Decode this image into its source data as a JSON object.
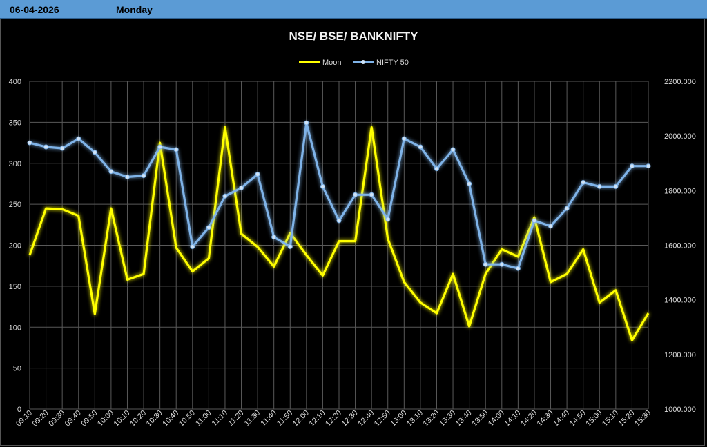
{
  "header": {
    "date": "06-04-2026",
    "day": "Monday"
  },
  "colors": {
    "moon": "#ffff00",
    "nifty": "#7fb3e8",
    "header_bg": "#5b9bd5",
    "grid": "#595959"
  },
  "chart_data": {
    "type": "line",
    "title": "NSE/ BSE/ BANKNIFTY",
    "legend_position": "top-center",
    "grid": true,
    "categories": [
      "09:10",
      "09:20",
      "09:30",
      "09:40",
      "09:50",
      "10:00",
      "10:10",
      "10:20",
      "10:30",
      "10:40",
      "10:50",
      "11:00",
      "11:10",
      "11:20",
      "11:30",
      "11:40",
      "11:50",
      "12:00",
      "12:10",
      "12:20",
      "12:30",
      "12:40",
      "12:50",
      "13:00",
      "13:10",
      "13:20",
      "13:30",
      "13:40",
      "13:50",
      "14:00",
      "14:10",
      "14:20",
      "14:30",
      "14:40",
      "14:50",
      "15:00",
      "15:10",
      "15:20",
      "15:30"
    ],
    "y_left": {
      "min": 0,
      "max": 400,
      "step": 50,
      "tick_labels": [
        "0",
        "50",
        "100",
        "150",
        "200",
        "250",
        "300",
        "350",
        "400"
      ]
    },
    "y_right": {
      "min": 1000,
      "max": 2200,
      "step": 200,
      "tick_labels": [
        "1000.000",
        "1200.000",
        "1400.000",
        "1600.000",
        "1800.000",
        "2000.000",
        "2200.000"
      ]
    },
    "series": [
      {
        "name": "Moon",
        "axis": "left",
        "markers": false,
        "values": [
          188,
          245,
          244,
          236,
          116,
          245,
          158,
          165,
          325,
          197,
          168,
          184,
          344,
          214,
          198,
          174,
          215,
          188,
          163,
          205,
          205,
          344,
          208,
          155,
          130,
          117,
          165,
          101,
          165,
          195,
          186,
          234,
          155,
          165,
          195,
          130,
          145,
          84,
          117
        ]
      },
      {
        "name": "NIFTY 50",
        "axis": "right",
        "markers": true,
        "values": [
          1975,
          1960,
          1955,
          1990,
          1940,
          1870,
          1850,
          1855,
          1960,
          1950,
          1595,
          1665,
          1780,
          1810,
          1860,
          1630,
          1595,
          2048,
          1815,
          1690,
          1785,
          1785,
          1695,
          1990,
          1960,
          1880,
          1950,
          1825,
          1530,
          1530,
          1515,
          1690,
          1670,
          1735,
          1830,
          1815,
          1815,
          1890,
          1890
        ]
      }
    ]
  }
}
